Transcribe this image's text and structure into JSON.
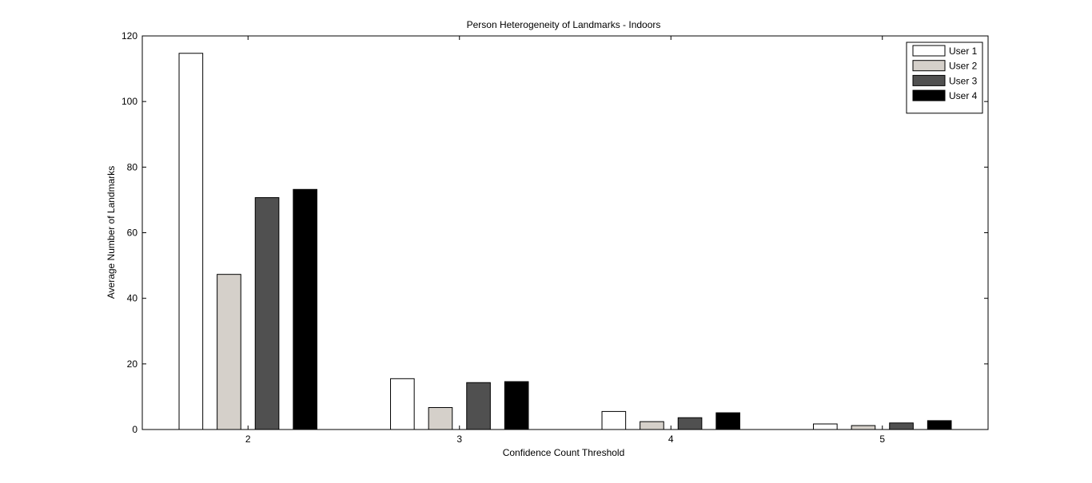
{
  "chart_data": {
    "type": "bar",
    "title": "Person Heterogeneity of Landmarks - Indoors",
    "xlabel": "Confidence Count Threshold",
    "ylabel": "Average Number of Landmarks",
    "categories": [
      "2",
      "3",
      "4",
      "5"
    ],
    "ylim": [
      0,
      120
    ],
    "yticks": [
      0,
      20,
      40,
      60,
      80,
      100,
      120
    ],
    "grid": false,
    "legend_position": "top-right",
    "series": [
      {
        "name": "User 1",
        "color": "#ffffff",
        "values": [
          114.7,
          15.5,
          5.5,
          1.7
        ]
      },
      {
        "name": "User 2",
        "color": "#d5d0ca",
        "values": [
          47.3,
          6.7,
          2.4,
          1.2
        ]
      },
      {
        "name": "User 3",
        "color": "#505050",
        "values": [
          70.7,
          14.3,
          3.6,
          2.0
        ]
      },
      {
        "name": "User 4",
        "color": "#000000",
        "values": [
          73.2,
          14.6,
          5.1,
          2.7
        ]
      }
    ]
  }
}
